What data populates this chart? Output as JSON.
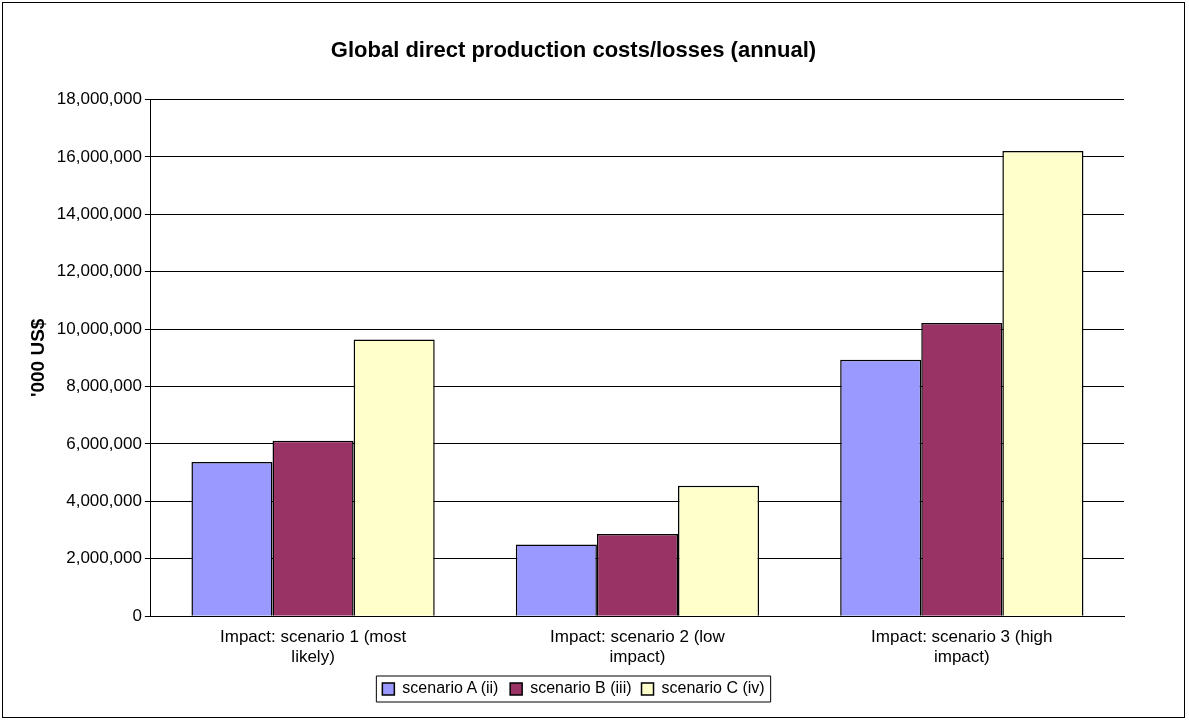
{
  "chart_data": {
    "type": "bar",
    "title": "Global direct production costs/losses (annual)",
    "ylabel": "'000 US$",
    "categories": [
      "Impact: scenario 1 (most likely)",
      "Impact: scenario 2 (low impact)",
      "Impact: scenario 3 (high impact)"
    ],
    "series": [
      {
        "name": "scenario A (ii)",
        "color": "#9999ff",
        "values": [
          5370000,
          2500000,
          8930000
        ]
      },
      {
        "name": "scenario B (iii)",
        "color": "#993366",
        "values": [
          6110000,
          2860000,
          10210000
        ]
      },
      {
        "name": "scenario C (iv)",
        "color": "#ffffcc",
        "values": [
          9640000,
          4540000,
          16200000
        ]
      }
    ],
    "ylim": [
      0,
      18000000
    ],
    "yticks": [
      0,
      {
        "value": 2000000,
        "label": "2,000,000"
      },
      {
        "value": 4000000,
        "label": "4,000,000"
      },
      {
        "value": 6000000,
        "label": "6,000,000"
      },
      {
        "value": 8000000,
        "label": "8,000,000"
      },
      {
        "value": 10000000,
        "label": "10,000,000"
      },
      {
        "value": 12000000,
        "label": "12,000,000"
      },
      {
        "value": 14000000,
        "label": "14,000,000"
      },
      {
        "value": 16000000,
        "label": "16,000,000"
      },
      {
        "value": 18000000,
        "label": "18,000,000"
      }
    ],
    "grid": "y",
    "legend": "bottom"
  }
}
